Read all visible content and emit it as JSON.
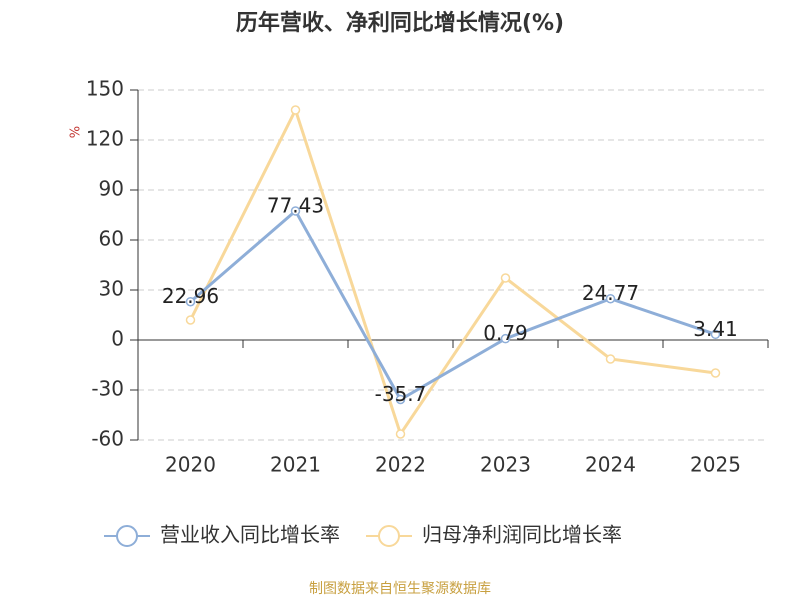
{
  "chart_data": {
    "type": "line",
    "title": "历年营收、净利同比增长情况(%)",
    "ylabel": "%",
    "categories": [
      "2020",
      "2021",
      "2022",
      "2023",
      "2024",
      "2025"
    ],
    "series": [
      {
        "name": "营业收入同比增长率",
        "color": "#8eaed8",
        "values": [
          22.96,
          77.43,
          -35.7,
          0.79,
          24.77,
          3.41
        ],
        "data_labels": true
      },
      {
        "name": "归母净利润同比增长率",
        "color": "#f8d89a",
        "values": [
          12,
          138,
          -56.4,
          37.2,
          -11.4,
          -19.8
        ],
        "data_labels": false
      }
    ],
    "ylim": [
      -60,
      150
    ],
    "yticks": [
      -60,
      -30,
      0,
      30,
      60,
      90,
      120,
      150
    ],
    "grid": true,
    "legend": "bottom",
    "source": "制图数据来自恒生聚源数据库"
  }
}
